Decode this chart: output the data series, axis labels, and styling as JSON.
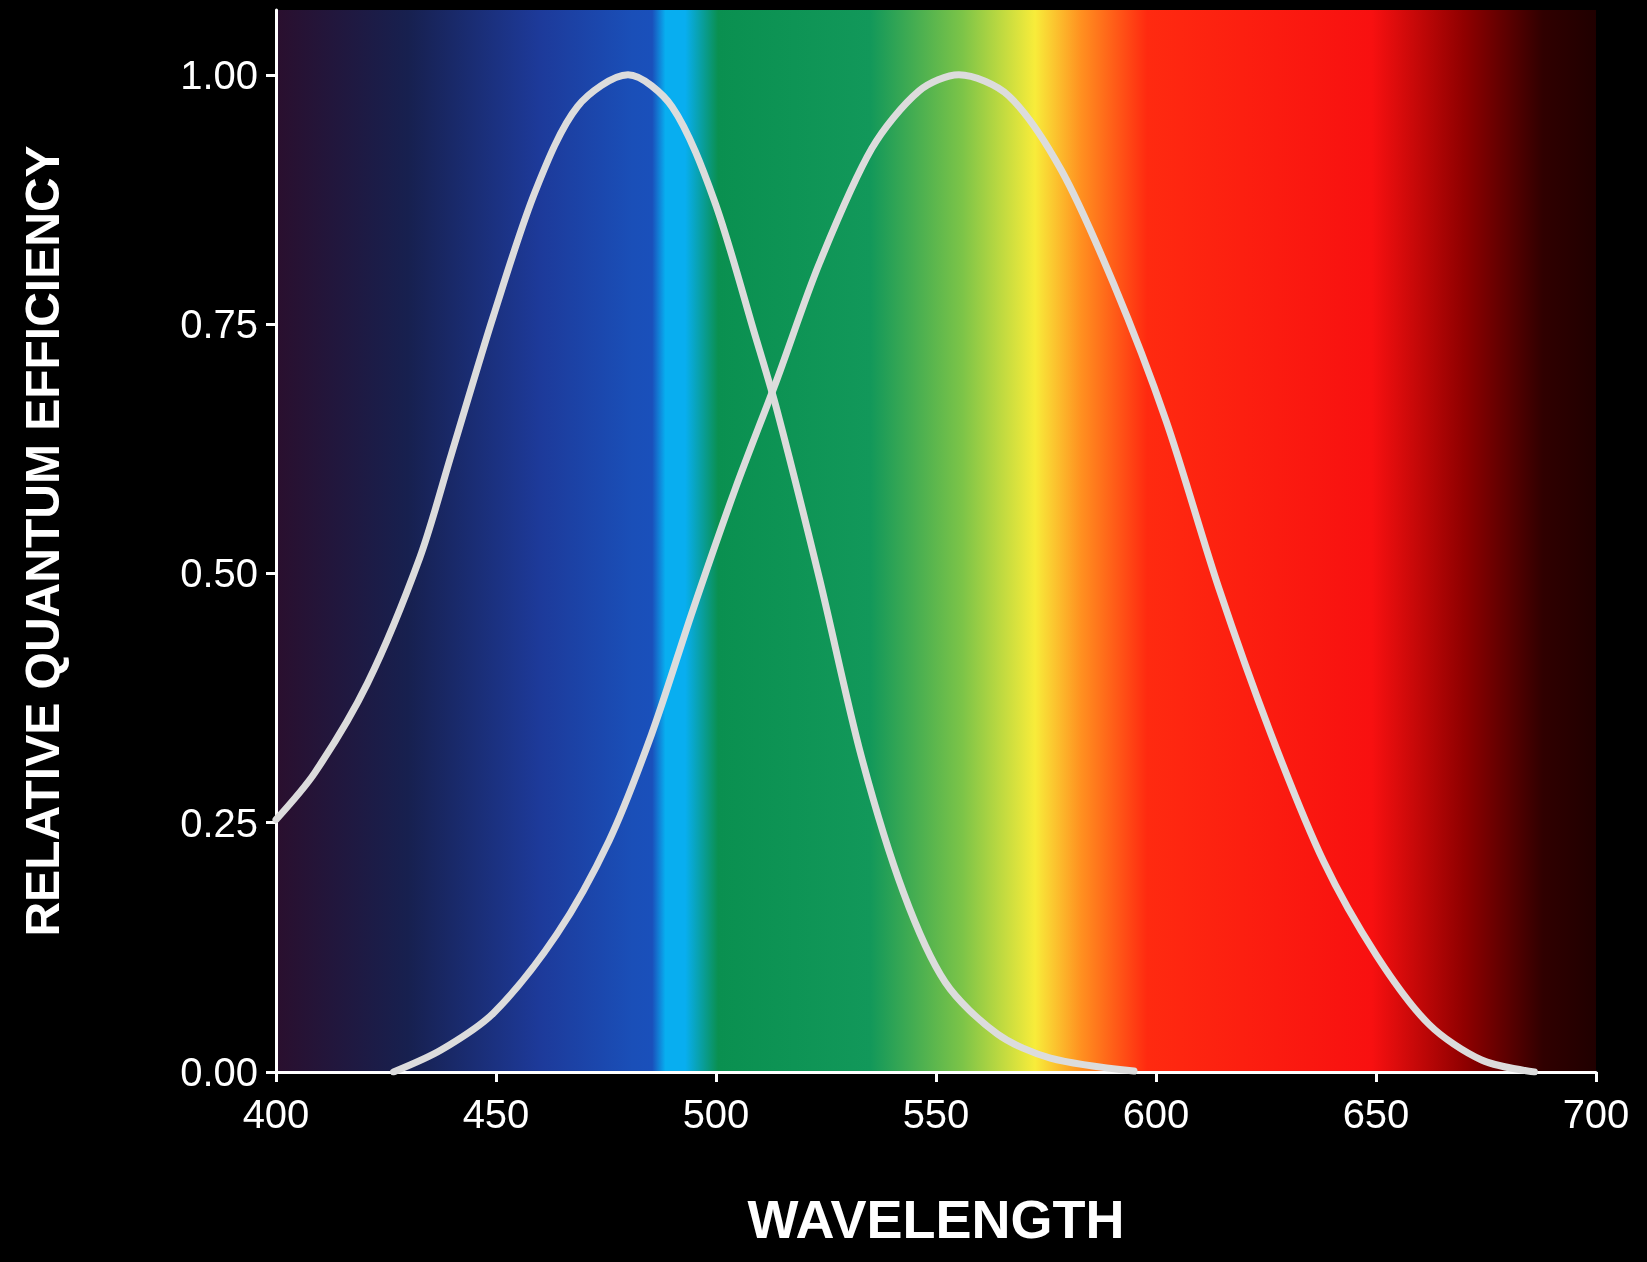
{
  "chart_data": {
    "type": "line",
    "xlabel": "WAVELENGTH",
    "ylabel": "RELATIVE QUANTUM EFFICIENCY",
    "xlim": [
      400,
      700
    ],
    "xticks": [
      400,
      450,
      500,
      550,
      600,
      650,
      700
    ],
    "ylim": [
      0,
      1.065
    ],
    "yticks": [
      {
        "value": 0,
        "label": "0.00"
      },
      {
        "value": 0.25,
        "label": "0.25"
      },
      {
        "value": 0.5,
        "label": "0.50"
      },
      {
        "value": 0.75,
        "label": "0.75"
      },
      {
        "value": 1,
        "label": "1.00"
      }
    ],
    "marker": "none",
    "grid": false,
    "series": [
      {
        "color": "#dcdcdc",
        "x": [
          400,
          408.8,
          420.8,
          432.7,
          439.9,
          449.4,
          459,
          468.5,
          480,
          490,
          499.6,
          509,
          513.9,
          523.5,
          533,
          542.6,
          552.1,
          564,
          576,
          595
        ],
        "values": [
          0.253,
          0.3,
          0.39,
          0.516,
          0.62,
          0.758,
          0.884,
          0.968,
          1.0,
          0.968,
          0.874,
          0.737,
          0.663,
          0.495,
          0.317,
          0.18,
          0.09,
          0.038,
          0.014,
          0.001
        ]
      },
      {
        "color": "#dcdcdc",
        "x": [
          426.7,
          437.5,
          449.4,
          463.8,
          475.7,
          485.3,
          494.8,
          504.4,
          513.9,
          523.5,
          535.4,
          546.2,
          555.2,
          566.5,
          578.4,
          590.4,
          602.3,
          614.3,
          626.2,
          638.1,
          650.1,
          662,
          674,
          686
        ],
        "values": [
          0,
          0.022,
          0.059,
          0.138,
          0.232,
          0.338,
          0.464,
          0.585,
          0.695,
          0.811,
          0.926,
          0.984,
          1.0,
          0.979,
          0.905,
          0.79,
          0.653,
          0.485,
          0.338,
          0.211,
          0.117,
          0.048,
          0.012,
          0
        ]
      }
    ]
  }
}
